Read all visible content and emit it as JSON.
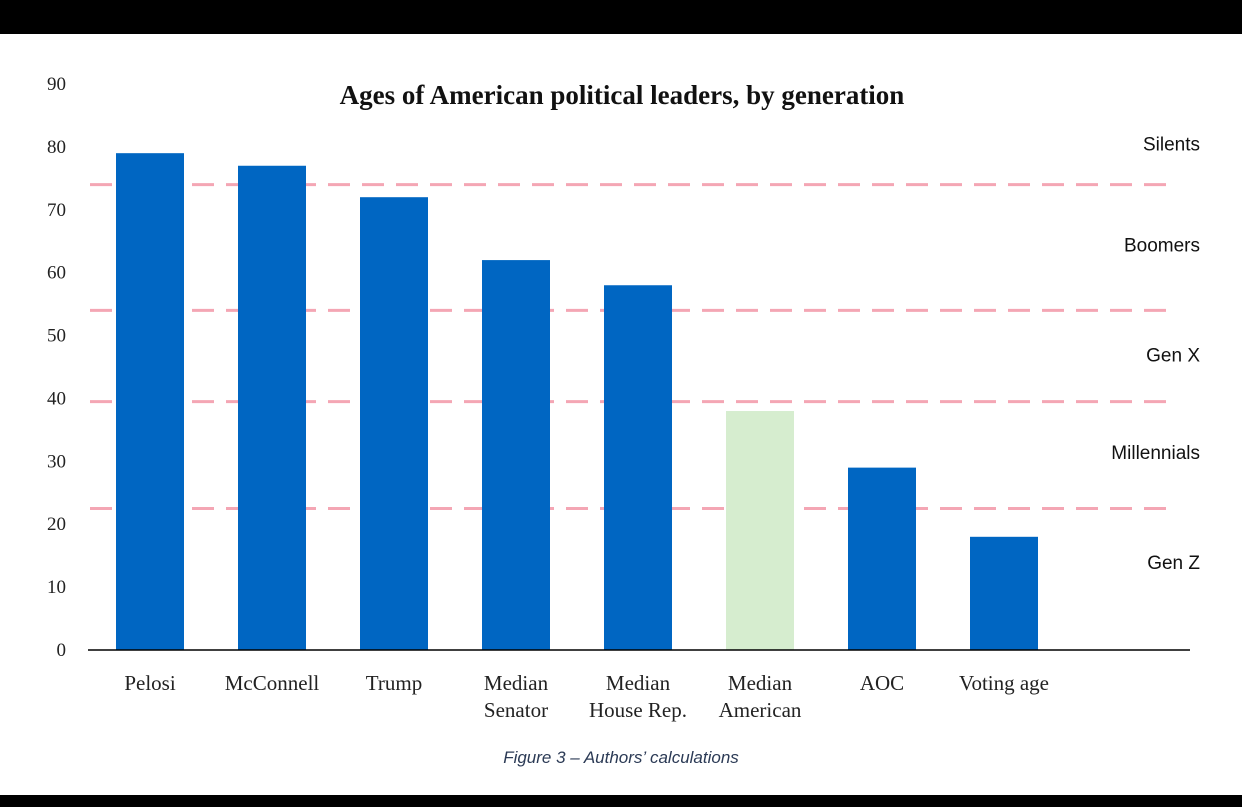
{
  "caption": "Figure 3 – Authors’ calculations",
  "chart_data": {
    "type": "bar",
    "title": "Ages of American political leaders, by generation",
    "xlabel": "",
    "ylabel": "",
    "categories": [
      [
        "Pelosi"
      ],
      [
        "McConnell"
      ],
      [
        "Trump"
      ],
      [
        "Median",
        "Senator"
      ],
      [
        "Median",
        "House Rep."
      ],
      [
        "Median",
        "American"
      ],
      [
        "AOC"
      ],
      [
        "Voting age"
      ]
    ],
    "values": [
      79,
      77,
      72,
      62,
      58,
      38,
      29,
      18
    ],
    "bar_colors": [
      "#0066c2",
      "#0066c2",
      "#0066c2",
      "#0066c2",
      "#0066c2",
      "#d6edcf",
      "#0066c2",
      "#0066c2"
    ],
    "ylim": [
      0,
      90
    ],
    "yticks": [
      "0",
      "10",
      "20",
      "30",
      "40",
      "50",
      "60",
      "70",
      "80",
      "90"
    ],
    "grid": false,
    "reference_lines": [
      {
        "value": 74,
        "color": "#f4a6b4"
      },
      {
        "value": 54,
        "color": "#f4a6b4"
      },
      {
        "value": 39.5,
        "color": "#f4a6b4"
      },
      {
        "value": 22.5,
        "color": "#f4a6b4"
      }
    ],
    "generation_labels": [
      {
        "label": "Silents",
        "value": 80.5
      },
      {
        "label": "Boomers",
        "value": 64.5
      },
      {
        "label": "Gen X",
        "value": 47
      },
      {
        "label": "Millennials",
        "value": 31.5
      },
      {
        "label": "Gen Z",
        "value": 14
      }
    ]
  }
}
